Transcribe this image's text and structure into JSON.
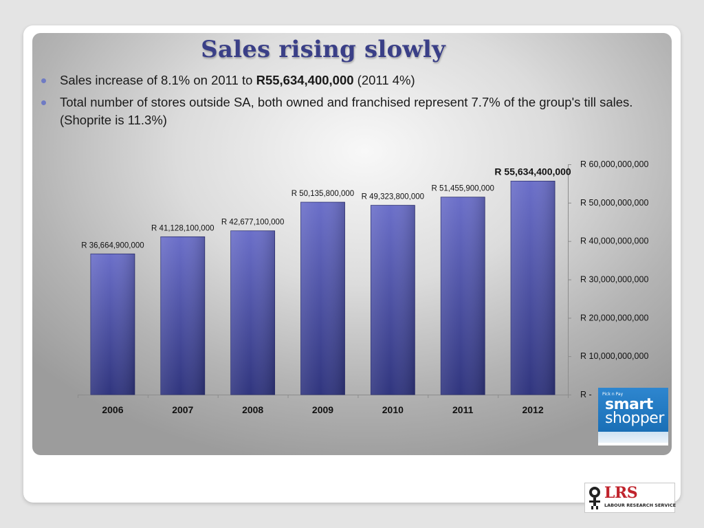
{
  "slide": {
    "title": "Sales rising slowly",
    "bullets": [
      {
        "pre": "Sales increase of 8.1% on 2011 to ",
        "bold": "R55,634,400,000",
        "post": " (2011 4%)"
      },
      {
        "pre": "Total number of stores outside SA, both owned and franchised represent 7.7% of the group's till sales. (Shoprite is 11.3%)",
        "bold": "",
        "post": ""
      }
    ]
  },
  "chart_data": {
    "type": "bar",
    "categories": [
      "2006",
      "2007",
      "2008",
      "2009",
      "2010",
      "2011",
      "2012"
    ],
    "values": [
      36664900000,
      41128100000,
      42677100000,
      50135800000,
      49323800000,
      51455900000,
      55634400000
    ],
    "data_labels": [
      "R 36,664,900,000",
      "R 41,128,100,000",
      "R 42,677,100,000",
      "R 50,135,800,000",
      "R 49,323,800,000",
      "R 51,455,900,000",
      "R 55,634,400,000"
    ],
    "highlight_label_index": 6,
    "ylim": [
      0,
      60000000000
    ],
    "ytick_values": [
      0,
      10000000000,
      20000000000,
      30000000000,
      40000000000,
      50000000000,
      60000000000
    ],
    "ytick_labels": [
      "R -",
      "R 10,000,000,000",
      "R 20,000,000,000",
      "R 30,000,000,000",
      "R 40,000,000,000",
      "R 50,000,000,000",
      "R 60,000,000,000"
    ],
    "y_axis_side": "right",
    "grid": false,
    "legend": "none",
    "bar_color_top": "#6b6fc9",
    "bar_color_bottom": "#30357e",
    "title": "",
    "xlabel": "",
    "ylabel": ""
  },
  "logos": {
    "smart_shopper": {
      "brand_small": "Pick n Pay",
      "word1": "smart",
      "word2": "shopper"
    },
    "lrs": {
      "abbrev": "LRS",
      "name": "LABOUR RESEARCH SERVICE"
    }
  },
  "colors": {
    "title": "#3a3f87",
    "bullet": "#6f7bc4",
    "smart_blue": "#1f78c1",
    "lrs_red": "#c0232c"
  }
}
